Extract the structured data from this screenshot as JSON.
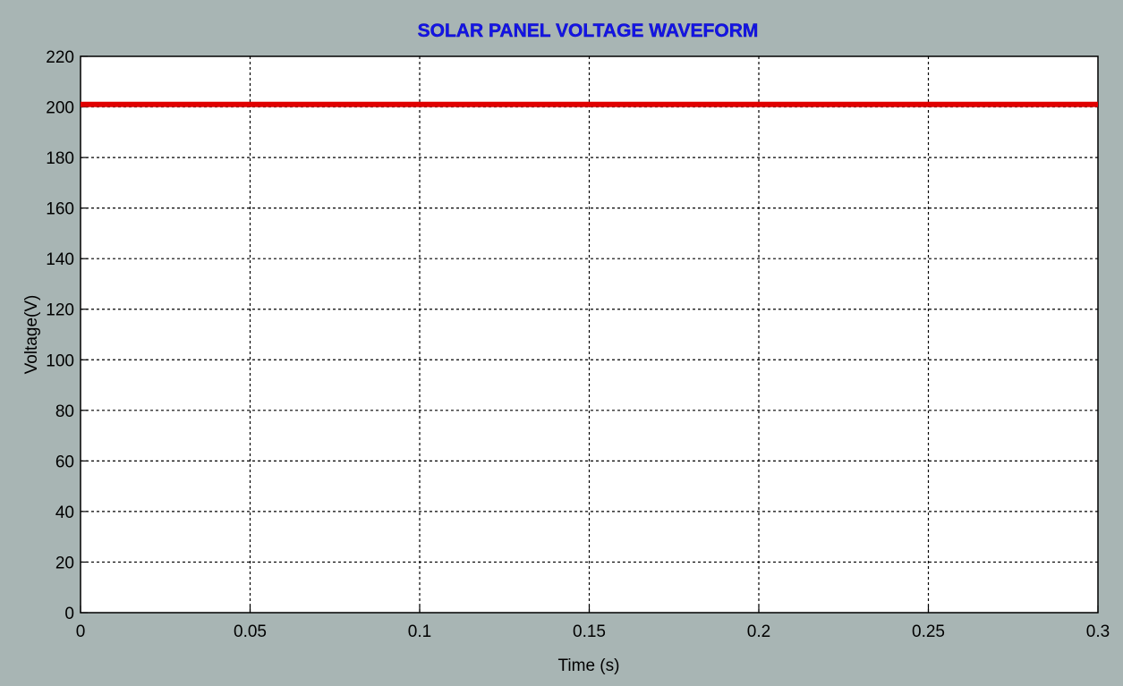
{
  "chart_data": {
    "type": "line",
    "title": "SOLAR PANEL VOLTAGE WAVEFORM",
    "xlabel": "Time (s)",
    "ylabel": "Voltage(V)",
    "xlim": [
      0,
      0.3
    ],
    "ylim": [
      0,
      220
    ],
    "xticks": [
      0,
      0.05,
      0.1,
      0.15,
      0.2,
      0.25,
      0.3
    ],
    "xtick_labels": [
      "0",
      "0.05",
      "0.1",
      "0.15",
      "0.2",
      "0.25",
      "0.3"
    ],
    "yticks": [
      0,
      20,
      40,
      60,
      80,
      100,
      120,
      140,
      160,
      180,
      200,
      220
    ],
    "ytick_labels": [
      "0",
      "20",
      "40",
      "60",
      "80",
      "100",
      "120",
      "140",
      "160",
      "180",
      "200",
      "220"
    ],
    "grid": true,
    "series": [
      {
        "x": [
          0,
          0.05,
          0.1,
          0.15,
          0.2,
          0.25,
          0.3
        ],
        "values": [
          201,
          201,
          201,
          201,
          201,
          201,
          201
        ],
        "color": "#e00000"
      }
    ]
  },
  "colors": {
    "background": "#a8b5b4",
    "plot_area": "#ffffff",
    "title": "#1414e6",
    "line": "#e00000"
  }
}
